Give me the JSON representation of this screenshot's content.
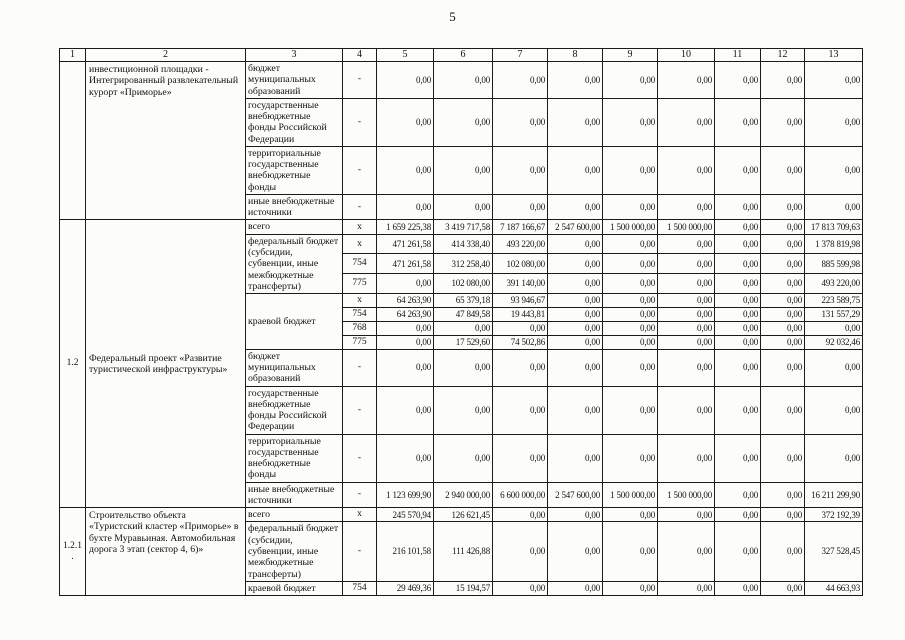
{
  "page": {
    "number": "5"
  },
  "table": {
    "header": [
      "1",
      "2",
      "3",
      "4",
      "5",
      "6",
      "7",
      "8",
      "9",
      "10",
      "11",
      "12",
      "13"
    ],
    "rows": [
      [
        {
          "t": "",
          "c": "id",
          "rs": 4
        },
        {
          "t": "инвестиционной площадки - Интегрированный развлекательный курорт «Приморье»",
          "c": "proj",
          "rs": 4
        },
        {
          "t": "бюджет муниципальных образований",
          "c": "l"
        },
        {
          "t": "-",
          "c": "code"
        },
        "0,00",
        "0,00",
        "0,00",
        "0,00",
        "0,00",
        "0,00",
        "0,00",
        "0,00",
        "0,00"
      ],
      [
        {
          "t": "государственные внебюджетные фонды Российской Федерации",
          "c": "l"
        },
        {
          "t": "-",
          "c": "code"
        },
        "0,00",
        "0,00",
        "0,00",
        "0,00",
        "0,00",
        "0,00",
        "0,00",
        "0,00",
        "0,00"
      ],
      [
        {
          "t": "территориальные государственные внебюджетные фонды",
          "c": "l"
        },
        {
          "t": "-",
          "c": "code"
        },
        "0,00",
        "0,00",
        "0,00",
        "0,00",
        "0,00",
        "0,00",
        "0,00",
        "0,00",
        "0,00"
      ],
      [
        {
          "t": "иные внебюджетные источники",
          "c": "l"
        },
        {
          "t": "-",
          "c": "code"
        },
        "0,00",
        "0,00",
        "0,00",
        "0,00",
        "0,00",
        "0,00",
        "0,00",
        "0,00",
        "0,00"
      ],
      [
        {
          "t": "1.2",
          "c": "id",
          "rs": 12
        },
        {
          "t": "Федеральный проект «Развитие туристической инфраструктуры»",
          "c": "proj mid",
          "rs": 12
        },
        {
          "t": "всего",
          "c": "l"
        },
        {
          "t": "x",
          "c": "code"
        },
        "1 659 225,38",
        "3 419 717,58",
        "7 187 166,67",
        "2 547 600,00",
        "1 500 000,00",
        "1 500 000,00",
        "0,00",
        "0,00",
        "17 813 709,63"
      ],
      [
        {
          "t": "федеральный бюджет (субсидии, субвенции, иные межбюджетные трансферты)",
          "c": "l",
          "rs": 3
        },
        {
          "t": "x",
          "c": "code"
        },
        "471 261,58",
        "414 338,40",
        "493 220,00",
        "0,00",
        "0,00",
        "0,00",
        "0,00",
        "0,00",
        "1 378 819,98"
      ],
      [
        {
          "t": "754",
          "c": "code"
        },
        "471 261,58",
        "312 258,40",
        "102 080,00",
        "0,00",
        "0,00",
        "0,00",
        "0,00",
        "0,00",
        "885 599,98"
      ],
      [
        {
          "t": "775",
          "c": "code"
        },
        "0,00",
        "102 080,00",
        "391 140,00",
        "0,00",
        "0,00",
        "0,00",
        "0,00",
        "0,00",
        "493 220,00"
      ],
      [
        {
          "t": "краевой бюджет",
          "c": "l",
          "rs": 4
        },
        {
          "t": "x",
          "c": "code"
        },
        "64 263,90",
        "65 379,18",
        "93 946,67",
        "0,00",
        "0,00",
        "0,00",
        "0,00",
        "0,00",
        "223 589,75"
      ],
      [
        {
          "t": "754",
          "c": "code"
        },
        "64 263,90",
        "47 849,58",
        "19 443,81",
        "0,00",
        "0,00",
        "0,00",
        "0,00",
        "0,00",
        "131 557,29"
      ],
      [
        {
          "t": "768",
          "c": "code"
        },
        "0,00",
        "0,00",
        "0,00",
        "0,00",
        "0,00",
        "0,00",
        "0,00",
        "0,00",
        "0,00"
      ],
      [
        {
          "t": "775",
          "c": "code"
        },
        "0,00",
        "17 529,60",
        "74 502,86",
        "0,00",
        "0,00",
        "0,00",
        "0,00",
        "0,00",
        "92 032,46"
      ],
      [
        {
          "t": "бюджет муниципальных образований",
          "c": "l"
        },
        {
          "t": "-",
          "c": "code"
        },
        "0,00",
        "0,00",
        "0,00",
        "0,00",
        "0,00",
        "0,00",
        "0,00",
        "0,00",
        "0,00"
      ],
      [
        {
          "t": "государственные внебюджетные фонды Российской Федерации",
          "c": "l"
        },
        {
          "t": "-",
          "c": "code"
        },
        "0,00",
        "0,00",
        "0,00",
        "0,00",
        "0,00",
        "0,00",
        "0,00",
        "0,00",
        "0,00"
      ],
      [
        {
          "t": "территориальные государственные внебюджетные фонды",
          "c": "l"
        },
        {
          "t": "-",
          "c": "code"
        },
        "0,00",
        "0,00",
        "0,00",
        "0,00",
        "0,00",
        "0,00",
        "0,00",
        "0,00",
        "0,00"
      ],
      [
        {
          "t": "иные внебюджетные источники",
          "c": "l"
        },
        {
          "t": "-",
          "c": "code"
        },
        "1 123 699,90",
        "2 940 000,00",
        "6 600 000,00",
        "2 547 600,00",
        "1 500 000,00",
        "1 500 000,00",
        "0,00",
        "0,00",
        "16 211 299,90"
      ],
      [
        {
          "t": "1.2.1.",
          "c": "id",
          "rs": 3
        },
        {
          "t": "Строительство объекта «Туристский кластер «Приморье» в бухте Муравьиная. Автомобильная дорога 3 этап (сектор 4, 6)»",
          "c": "proj",
          "rs": 3
        },
        {
          "t": "всего",
          "c": "l"
        },
        {
          "t": "x",
          "c": "code"
        },
        "245 570,94",
        "126 621,45",
        "0,00",
        "0,00",
        "0,00",
        "0,00",
        "0,00",
        "0,00",
        "372 192,39"
      ],
      [
        {
          "t": "федеральный бюджет (субсидии, субвенции, иные межбюджетные трансферты)",
          "c": "l"
        },
        {
          "t": "-",
          "c": "code"
        },
        "216 101,58",
        "111 426,88",
        "0,00",
        "0,00",
        "0,00",
        "0,00",
        "0,00",
        "0,00",
        "327 528,45"
      ],
      [
        {
          "t": "краевой бюджет",
          "c": "l"
        },
        {
          "t": "754",
          "c": "code"
        },
        "29 469,36",
        "15 194,57",
        "0,00",
        "0,00",
        "0,00",
        "0,00",
        "0,00",
        "0,00",
        "44 663,93"
      ]
    ]
  }
}
